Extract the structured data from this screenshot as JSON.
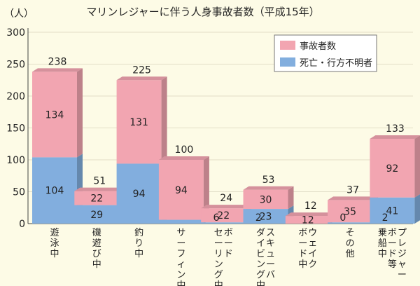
{
  "chart_data": {
    "type": "bar",
    "stacked": true,
    "title": "マリンレジャーに伴う人身事故者数（平成15年）",
    "ylabel": "（人）",
    "ylim": [
      0,
      300
    ],
    "yticks": [
      0,
      50,
      100,
      150,
      200,
      250,
      300
    ],
    "categories": [
      {
        "label": "遊泳中",
        "lines": [
          "遊泳中"
        ]
      },
      {
        "label": "磯遊び中",
        "lines": [
          "磯遊び中"
        ]
      },
      {
        "label": "釣り中",
        "lines": [
          "釣り中"
        ]
      },
      {
        "label": "サーフィン中",
        "lines": [
          "サーフィン中"
        ]
      },
      {
        "label": "ボードセーリング中",
        "lines": [
          "ボード",
          "セーリング中"
        ]
      },
      {
        "label": "スキューバダイビング中",
        "lines": [
          "スキューバ",
          "ダイビング中"
        ]
      },
      {
        "label": "ウェイクボード中",
        "lines": [
          "ウェイク",
          "ボード中"
        ]
      },
      {
        "label": "その他",
        "lines": [
          "その他"
        ]
      },
      {
        "label": "プレジャーボード等乗船中",
        "lines": [
          "プレジャー",
          "ボード等",
          "乗船中"
        ]
      }
    ],
    "series": [
      {
        "name": "死亡・行方不明者",
        "color": "#82aede",
        "values": [
          104,
          29,
          94,
          6,
          2,
          23,
          0,
          2,
          41
        ]
      },
      {
        "name": "事故者数",
        "color": "#f2a5b1",
        "values": [
          134,
          22,
          131,
          94,
          22,
          30,
          12,
          35,
          92
        ]
      }
    ],
    "totals": [
      238,
      51,
      225,
      100,
      24,
      53,
      12,
      37,
      133
    ],
    "legend": {
      "position": "top-right",
      "order": [
        "事故者数",
        "死亡・行方不明者"
      ]
    }
  }
}
